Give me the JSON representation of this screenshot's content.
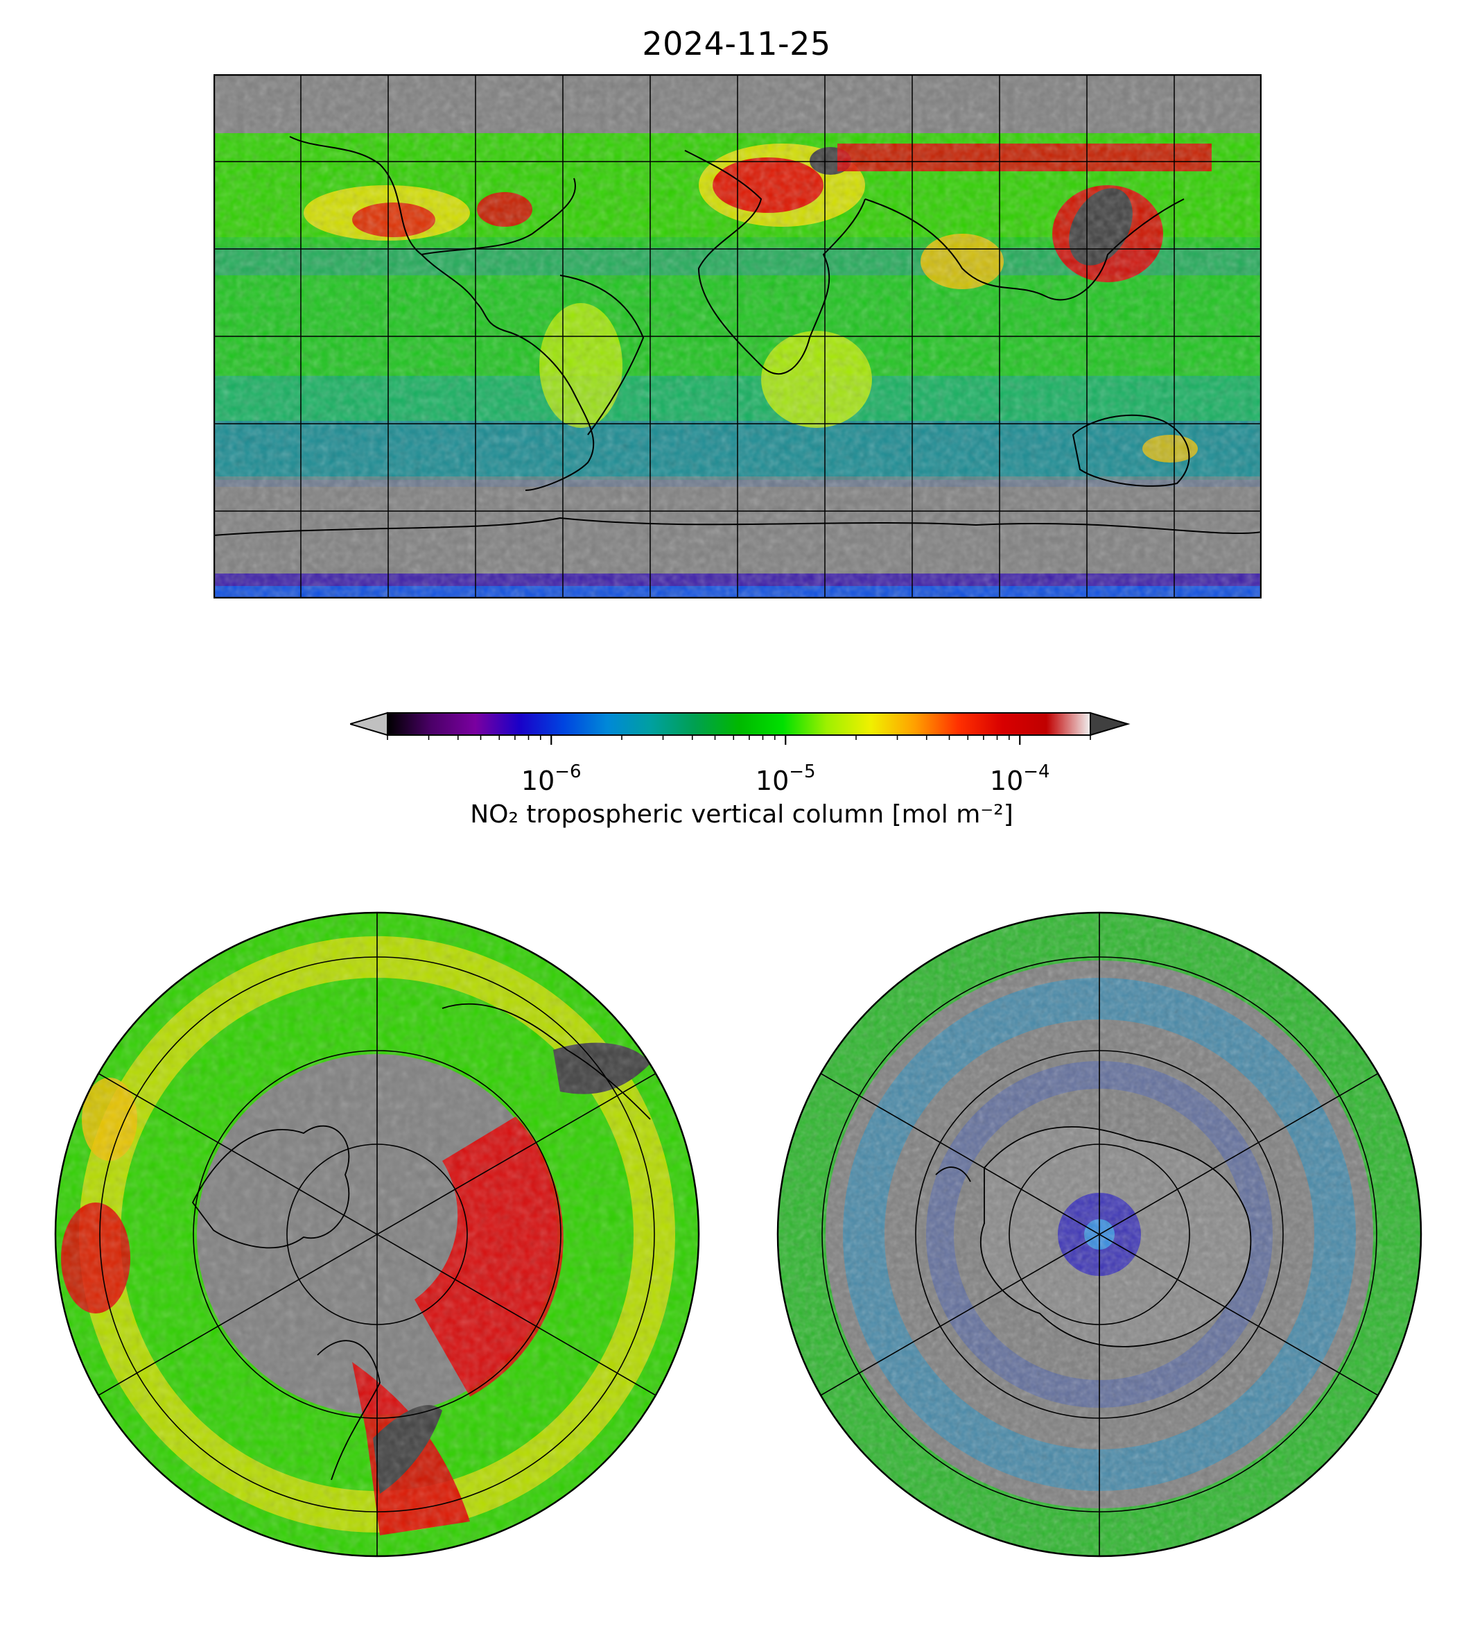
{
  "title": "2024-11-25",
  "colorbar": {
    "label": "NO₂ tropospheric vertical column [mol m⁻²]",
    "scale": "log",
    "range": [
      2e-07,
      0.0002
    ],
    "extend": "both",
    "under_color": "#c0c0c0",
    "over_color": "#404040",
    "ticks": [
      {
        "base": "10",
        "exp": "−6",
        "value": 1e-06
      },
      {
        "base": "10",
        "exp": "−5",
        "value": 1e-05
      },
      {
        "base": "10",
        "exp": "−4",
        "value": 0.0001
      }
    ],
    "colormap": [
      "#000000",
      "#4b0068",
      "#7a00a0",
      "#1a00c8",
      "#0044e0",
      "#0088d8",
      "#00a0a0",
      "#00a050",
      "#00b800",
      "#00e000",
      "#9ef000",
      "#f0f000",
      "#ffa000",
      "#ff3000",
      "#d80000",
      "#c00000",
      "#f0f0f0"
    ]
  },
  "maps": {
    "global": {
      "projection": "Plate Carrée",
      "gridlines": true,
      "background": "#808080"
    },
    "north_polar": {
      "projection": "North Polar Stereographic",
      "gridlines": true
    },
    "south_polar": {
      "projection": "South Polar Stereographic",
      "gridlines": true
    }
  },
  "colors": {
    "no_data": "#808080",
    "saturated": "#404040",
    "low": "#00b800",
    "mid": "#f0f000",
    "high": "#d80000"
  }
}
